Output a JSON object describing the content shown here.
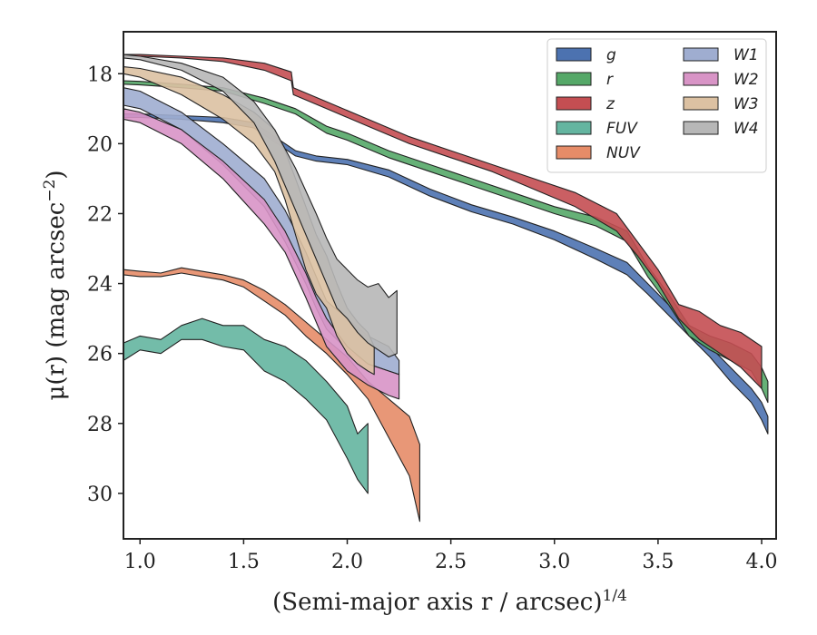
{
  "chart_data": {
    "type": "area",
    "xlabel": "(Semi-major axis r / arcsec)",
    "xlabel_exponent": "1/4",
    "ylabel": "μ(r) (mag arcsec",
    "ylabel_exponent": "−2",
    "ylabel_close": ")",
    "xlim": [
      0.92,
      4.07
    ],
    "ylim": [
      31.3,
      16.8
    ],
    "y_inverted": true,
    "x_ticks": [
      1.0,
      1.5,
      2.0,
      2.5,
      3.0,
      3.5,
      4.0
    ],
    "x_tick_labels": [
      "1.0",
      "1.5",
      "2.0",
      "2.5",
      "3.0",
      "3.5",
      "4.0"
    ],
    "y_ticks": [
      18,
      20,
      22,
      24,
      26,
      28,
      30
    ],
    "y_tick_labels": [
      "18",
      "20",
      "22",
      "24",
      "26",
      "28",
      "30"
    ],
    "grid": false,
    "legend_position": "top-right",
    "legend_columns": 2,
    "series": [
      {
        "name": "g",
        "color": "#4c72b0",
        "x": [
          0.92,
          1.0,
          1.2,
          1.4,
          1.55,
          1.65,
          1.75,
          1.85,
          2.0,
          2.2,
          2.4,
          2.6,
          2.8,
          3.0,
          3.2,
          3.35,
          3.45,
          3.55,
          3.65,
          3.75,
          3.85,
          3.95,
          4.0,
          4.03
        ],
        "y_low": [
          19.15,
          19.15,
          19.2,
          19.25,
          19.4,
          19.8,
          20.2,
          20.35,
          20.45,
          20.75,
          21.3,
          21.75,
          22.1,
          22.5,
          23.0,
          23.4,
          24.0,
          24.6,
          25.2,
          25.8,
          26.4,
          27.0,
          27.4,
          27.8
        ],
        "y_high": [
          19.25,
          19.25,
          19.3,
          19.4,
          19.55,
          19.95,
          20.35,
          20.5,
          20.6,
          20.95,
          21.5,
          21.95,
          22.3,
          22.75,
          23.3,
          23.75,
          24.3,
          24.9,
          25.5,
          26.1,
          26.8,
          27.4,
          27.9,
          28.3
        ]
      },
      {
        "name": "r",
        "color": "#55a868",
        "x": [
          0.92,
          1.0,
          1.2,
          1.4,
          1.6,
          1.75,
          1.9,
          2.0,
          2.2,
          2.4,
          2.6,
          2.8,
          3.0,
          3.2,
          3.35,
          3.45,
          3.55,
          3.65,
          3.75,
          3.85,
          3.95,
          4.0,
          4.03
        ],
        "y_low": [
          18.2,
          18.22,
          18.3,
          18.4,
          18.7,
          19.0,
          19.5,
          19.7,
          20.2,
          20.6,
          21.0,
          21.4,
          21.8,
          22.1,
          22.5,
          23.5,
          24.3,
          25.2,
          25.5,
          25.7,
          26.0,
          26.4,
          26.8
        ],
        "y_high": [
          18.3,
          18.32,
          18.4,
          18.5,
          18.85,
          19.15,
          19.7,
          19.9,
          20.4,
          20.8,
          21.2,
          21.6,
          22.0,
          22.35,
          22.8,
          23.8,
          24.6,
          25.5,
          25.9,
          26.2,
          26.5,
          27.0,
          27.4
        ]
      },
      {
        "name": "z",
        "color": "#c44e52",
        "x": [
          0.92,
          1.0,
          1.2,
          1.4,
          1.6,
          1.73,
          1.74,
          1.9,
          2.1,
          2.3,
          2.5,
          2.7,
          2.9,
          3.1,
          3.3,
          3.4,
          3.5,
          3.6,
          3.7,
          3.8,
          3.9,
          4.0
        ],
        "y_low": [
          17.5,
          17.5,
          17.55,
          17.65,
          17.9,
          18.2,
          18.6,
          19.0,
          19.5,
          20.0,
          20.4,
          20.8,
          21.3,
          21.8,
          22.5,
          23.2,
          24.0,
          25.0,
          25.6,
          26.0,
          26.4,
          27.0
        ],
        "y_high": [
          17.45,
          17.45,
          17.5,
          17.55,
          17.7,
          17.95,
          18.4,
          18.8,
          19.3,
          19.8,
          20.2,
          20.6,
          21.0,
          21.4,
          22.0,
          22.8,
          23.6,
          24.6,
          24.8,
          25.2,
          25.4,
          25.8
        ]
      },
      {
        "name": "FUV",
        "color": "#64b5a0",
        "x": [
          0.92,
          1.0,
          1.1,
          1.2,
          1.3,
          1.4,
          1.5,
          1.6,
          1.7,
          1.8,
          1.9,
          2.0,
          2.05,
          2.1
        ],
        "y_low": [
          26.2,
          25.9,
          26.0,
          25.6,
          25.6,
          25.8,
          25.9,
          26.5,
          26.8,
          27.3,
          27.9,
          29.0,
          29.6,
          30.0
        ],
        "y_high": [
          25.7,
          25.5,
          25.6,
          25.2,
          25.0,
          25.2,
          25.2,
          25.6,
          25.8,
          26.2,
          26.8,
          27.5,
          28.3,
          28.0
        ]
      },
      {
        "name": "NUV",
        "color": "#e68c68",
        "x": [
          0.92,
          1.0,
          1.1,
          1.2,
          1.3,
          1.4,
          1.5,
          1.6,
          1.7,
          1.8,
          1.9,
          2.0,
          2.1,
          2.2,
          2.3,
          2.35
        ],
        "y_low": [
          23.75,
          23.8,
          23.8,
          23.7,
          23.8,
          23.9,
          24.1,
          24.5,
          24.9,
          25.5,
          26.0,
          26.6,
          27.3,
          28.4,
          29.5,
          30.8
        ],
        "y_high": [
          23.6,
          23.65,
          23.7,
          23.55,
          23.65,
          23.75,
          23.9,
          24.2,
          24.6,
          25.1,
          25.6,
          26.1,
          26.8,
          27.3,
          27.8,
          28.6
        ]
      },
      {
        "name": "W1",
        "color": "#9fadd0",
        "x": [
          0.92,
          1.0,
          1.2,
          1.4,
          1.6,
          1.7,
          1.8,
          1.85,
          1.9,
          2.0,
          2.1,
          2.2,
          2.25
        ],
        "y_low": [
          18.9,
          19.0,
          19.6,
          20.6,
          21.8,
          22.8,
          24.0,
          24.7,
          25.3,
          25.9,
          26.3,
          26.5,
          26.6
        ],
        "y_high": [
          18.4,
          18.5,
          19.1,
          20.0,
          21.0,
          21.9,
          23.1,
          23.8,
          24.5,
          25.0,
          25.5,
          25.8,
          26.2
        ]
      },
      {
        "name": "W2",
        "color": "#d894c6",
        "x": [
          0.92,
          1.0,
          1.2,
          1.4,
          1.6,
          1.7,
          1.8,
          1.85,
          1.9,
          2.0,
          2.1,
          2.2,
          2.25
        ],
        "y_low": [
          19.3,
          19.4,
          20.0,
          21.0,
          22.3,
          23.1,
          24.4,
          25.1,
          25.8,
          26.5,
          26.9,
          27.2,
          27.3
        ],
        "y_high": [
          19.0,
          19.1,
          19.6,
          20.5,
          21.6,
          22.5,
          23.7,
          24.4,
          25.0,
          25.8,
          26.3,
          26.5,
          26.6
        ]
      },
      {
        "name": "W3",
        "color": "#dcc1a2",
        "x": [
          0.92,
          1.0,
          1.2,
          1.4,
          1.55,
          1.65,
          1.7,
          1.75,
          1.8,
          1.85,
          1.9,
          1.95,
          2.0,
          2.05,
          2.1,
          2.13
        ],
        "y_low": [
          18.0,
          18.1,
          18.6,
          19.3,
          20.0,
          20.8,
          21.6,
          22.6,
          23.6,
          24.3,
          24.7,
          25.5,
          26.0,
          26.3,
          26.5,
          26.6
        ],
        "y_high": [
          17.8,
          17.85,
          18.1,
          18.6,
          19.1,
          19.6,
          20.2,
          21.0,
          21.8,
          22.6,
          23.2,
          24.0,
          24.7,
          25.1,
          25.4,
          25.8
        ]
      },
      {
        "name": "W4",
        "color": "#b7b7b7",
        "x": [
          0.92,
          1.0,
          1.2,
          1.4,
          1.55,
          1.65,
          1.75,
          1.85,
          1.9,
          1.95,
          2.0,
          2.05,
          2.1,
          2.15,
          2.2,
          2.24
        ],
        "y_low": [
          17.55,
          17.6,
          17.9,
          18.5,
          19.4,
          20.5,
          21.9,
          23.3,
          24.0,
          24.7,
          25.0,
          25.4,
          25.7,
          25.9,
          26.1,
          26.0
        ],
        "y_high": [
          17.45,
          17.5,
          17.7,
          18.1,
          18.8,
          19.6,
          20.7,
          22.0,
          22.7,
          23.3,
          23.6,
          23.9,
          24.1,
          24.0,
          24.4,
          24.2
        ]
      }
    ]
  }
}
